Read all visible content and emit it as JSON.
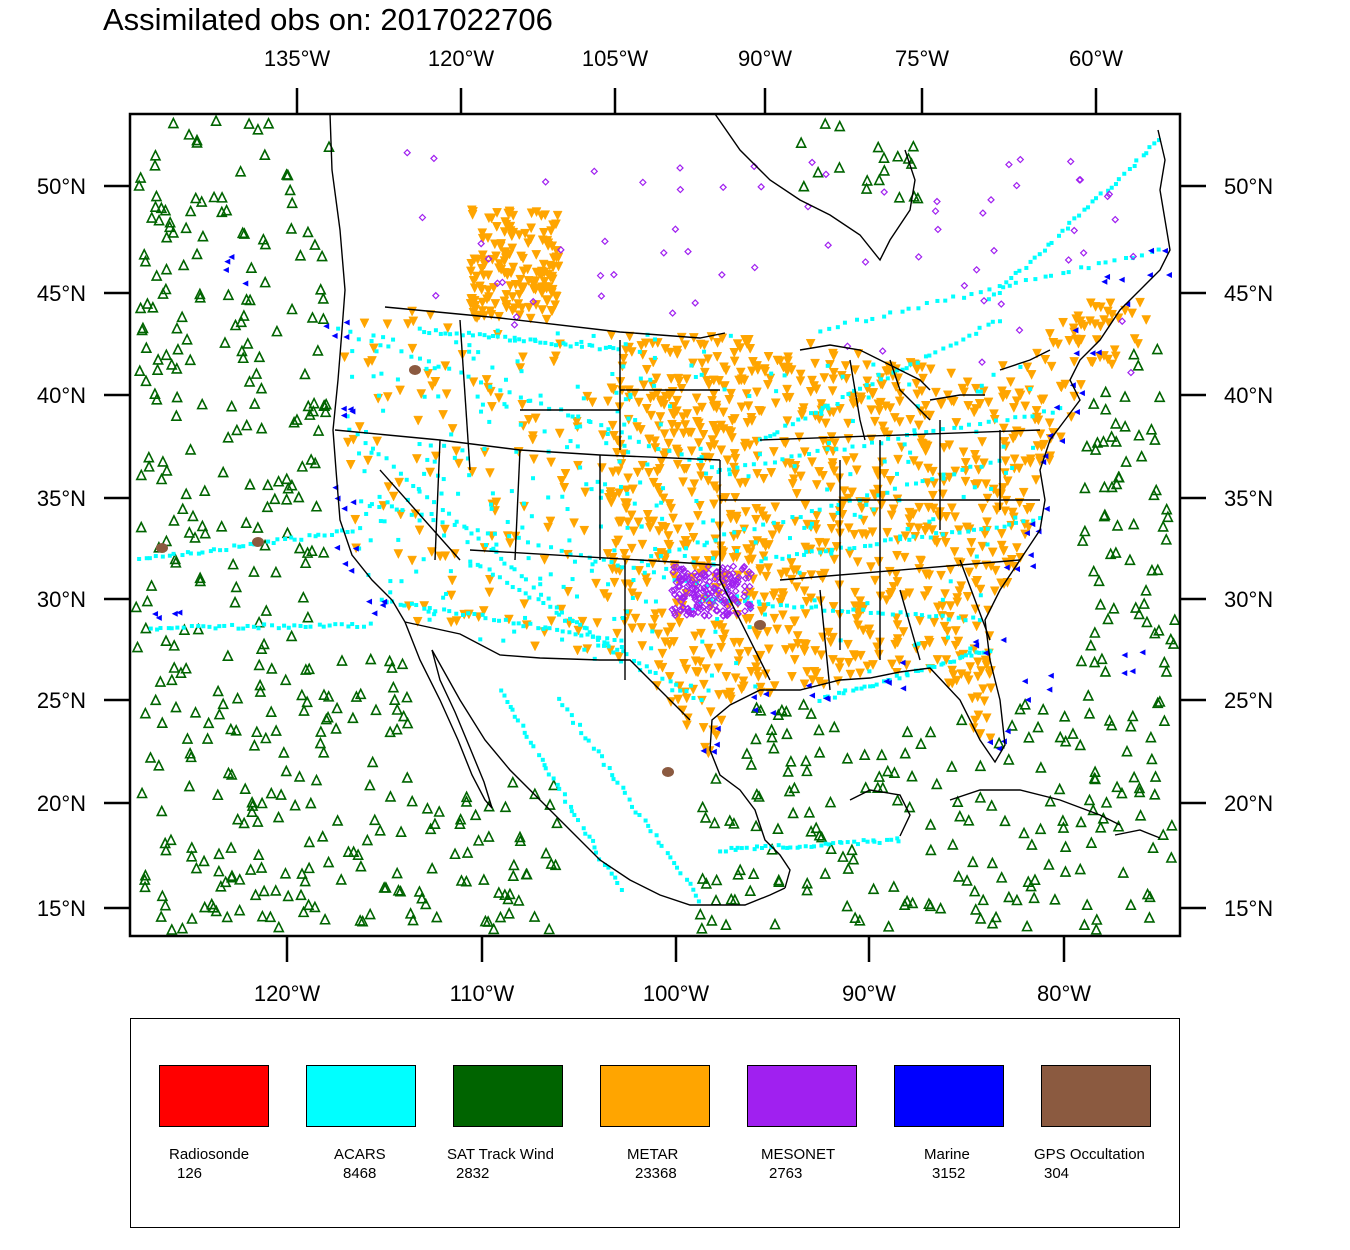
{
  "title": "Assimilated obs on: 2017022706",
  "map": {
    "top_axis_labels": [
      "135°W",
      "120°W",
      "105°W",
      "90°W",
      "75°W",
      "60°W"
    ],
    "bottom_axis_labels": [
      "120°W",
      "110°W",
      "100°W",
      "90°W",
      "80°W"
    ],
    "left_axis_labels": [
      "50°N",
      "45°N",
      "40°N",
      "35°N",
      "30°N",
      "25°N",
      "20°N",
      "15°N"
    ],
    "right_axis_labels": [
      "50°N",
      "45°N",
      "40°N",
      "35°N",
      "30°N",
      "25°N",
      "20°N",
      "15°N"
    ],
    "line_color": "#000000"
  },
  "legend": [
    {
      "name": "Radiosonde",
      "count": "126",
      "color": "#ff0000"
    },
    {
      "name": "ACARS",
      "count": "8468",
      "color": "#00ffff"
    },
    {
      "name": "SAT Track Wind",
      "count": "2832",
      "color": "#006400"
    },
    {
      "name": "METAR",
      "count": "23368",
      "color": "#ffa500"
    },
    {
      "name": "MESONET",
      "count": "2763",
      "color": "#a020f0"
    },
    {
      "name": "Marine",
      "count": "3152",
      "color": "#0000ff"
    },
    {
      "name": "GPS Occultation",
      "count": "304",
      "color": "#8b5a40"
    }
  ]
}
